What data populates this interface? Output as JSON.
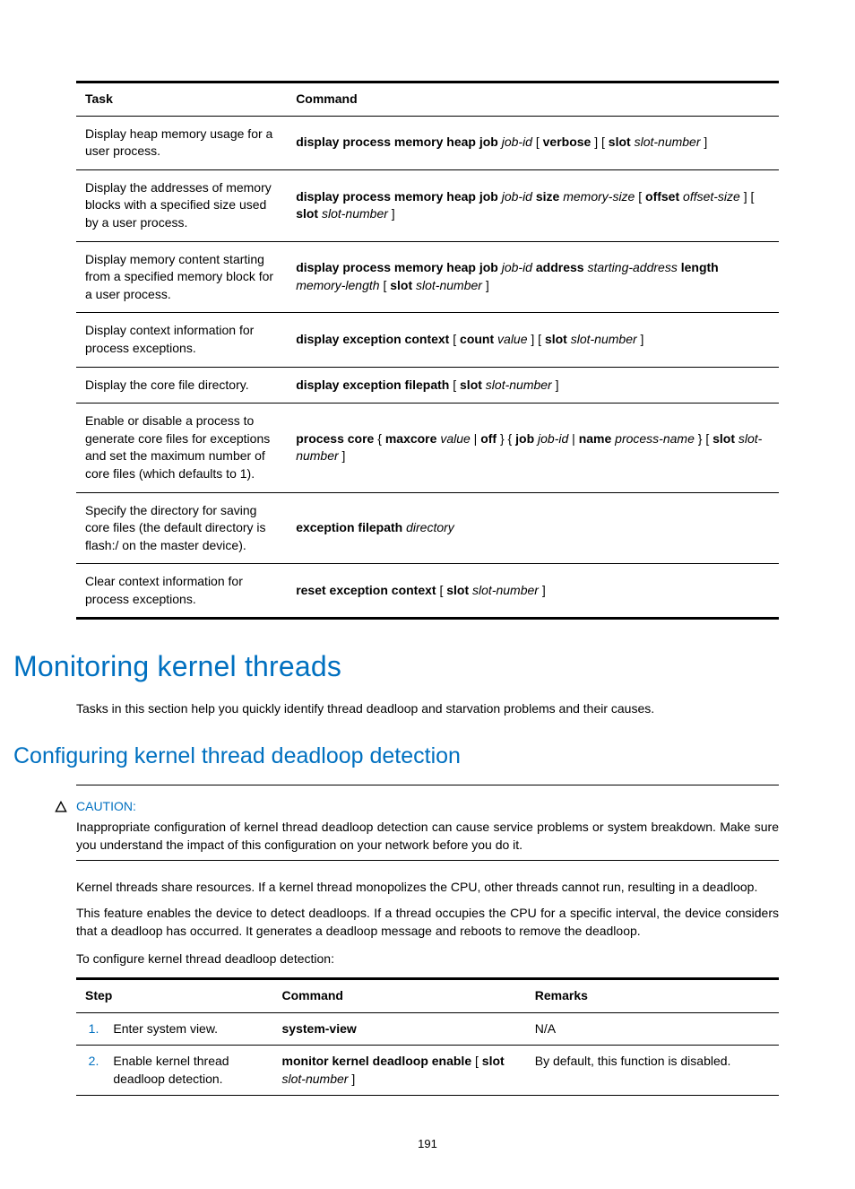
{
  "cmdTable": {
    "headers": {
      "task": "Task",
      "command": "Command"
    },
    "rows": [
      {
        "task": "Display heap memory usage for a user process.",
        "cmd": [
          {
            "t": "display process memory heap job ",
            "b": true
          },
          {
            "t": "job-id",
            "i": true
          },
          {
            "t": " [ "
          },
          {
            "t": "verbose",
            "b": true
          },
          {
            "t": " ] [ "
          },
          {
            "t": "slot",
            "b": true
          },
          {
            "t": " "
          },
          {
            "t": "slot-number",
            "i": true
          },
          {
            "t": " ]"
          }
        ]
      },
      {
        "task": "Display the addresses of memory blocks with a specified size used by a user process.",
        "cmd": [
          {
            "t": "display process memory heap job ",
            "b": true
          },
          {
            "t": "job-id",
            "i": true
          },
          {
            "t": " "
          },
          {
            "t": "size",
            "b": true
          },
          {
            "t": " "
          },
          {
            "t": "memory-size",
            "i": true
          },
          {
            "t": " [ "
          },
          {
            "t": "offset",
            "b": true
          },
          {
            "t": " "
          },
          {
            "t": "offset-size",
            "i": true
          },
          {
            "t": " ] [ "
          },
          {
            "t": "slot",
            "b": true
          },
          {
            "t": " "
          },
          {
            "t": "slot-number",
            "i": true
          },
          {
            "t": " ]"
          }
        ]
      },
      {
        "task": "Display memory content starting from a specified memory block for a user process.",
        "cmd": [
          {
            "t": "display process memory heap job ",
            "b": true
          },
          {
            "t": "job-id",
            "i": true
          },
          {
            "t": " "
          },
          {
            "t": "address",
            "b": true
          },
          {
            "t": " "
          },
          {
            "t": "starting-address",
            "i": true
          },
          {
            "t": " "
          },
          {
            "t": "length",
            "b": true
          },
          {
            "t": " "
          },
          {
            "t": "memory-length",
            "i": true
          },
          {
            "t": " [ "
          },
          {
            "t": "slot",
            "b": true
          },
          {
            "t": " "
          },
          {
            "t": "slot-number",
            "i": true
          },
          {
            "t": " ]"
          }
        ]
      },
      {
        "task": "Display context information for process exceptions.",
        "cmd": [
          {
            "t": "display exception context",
            "b": true
          },
          {
            "t": " [ "
          },
          {
            "t": "count",
            "b": true
          },
          {
            "t": " "
          },
          {
            "t": "value",
            "i": true
          },
          {
            "t": " ] [ "
          },
          {
            "t": "slot",
            "b": true
          },
          {
            "t": " "
          },
          {
            "t": "slot-number",
            "i": true
          },
          {
            "t": " ]"
          }
        ]
      },
      {
        "task": "Display the core file directory.",
        "cmd": [
          {
            "t": "display exception filepath",
            "b": true
          },
          {
            "t": " [ "
          },
          {
            "t": "slot",
            "b": true
          },
          {
            "t": " "
          },
          {
            "t": "slot-number",
            "i": true
          },
          {
            "t": " ]"
          }
        ]
      },
      {
        "task": "Enable or disable a process to generate core files for exceptions and set the maximum number of core files (which defaults to 1).",
        "cmd": [
          {
            "t": "process core",
            "b": true
          },
          {
            "t": " { "
          },
          {
            "t": "maxcore",
            "b": true
          },
          {
            "t": " "
          },
          {
            "t": "value",
            "i": true
          },
          {
            "t": " | "
          },
          {
            "t": "off",
            "b": true
          },
          {
            "t": " } { "
          },
          {
            "t": "job",
            "b": true
          },
          {
            "t": " "
          },
          {
            "t": "job-id",
            "i": true
          },
          {
            "t": " | "
          },
          {
            "t": "name",
            "b": true
          },
          {
            "t": " "
          },
          {
            "t": "process-name",
            "i": true
          },
          {
            "t": " } [ "
          },
          {
            "t": "slot",
            "b": true
          },
          {
            "t": " "
          },
          {
            "t": "slot-number",
            "i": true
          },
          {
            "t": " ]"
          }
        ]
      },
      {
        "task": "Specify the directory for saving core files (the default directory is flash:/ on the master device).",
        "cmd": [
          {
            "t": "exception filepath",
            "b": true
          },
          {
            "t": " "
          },
          {
            "t": "directory",
            "i": true
          }
        ]
      },
      {
        "task": "Clear context information for process exceptions.",
        "cmd": [
          {
            "t": "reset exception context",
            "b": true
          },
          {
            "t": " [ "
          },
          {
            "t": "slot",
            "b": true
          },
          {
            "t": " "
          },
          {
            "t": "slot-number",
            "i": true
          },
          {
            "t": " ]"
          }
        ]
      }
    ]
  },
  "heading1": "Monitoring kernel threads",
  "intro1": "Tasks in this section help you quickly identify thread deadloop and starvation problems and their causes.",
  "heading2": "Configuring kernel thread deadloop detection",
  "caution": {
    "label": "CAUTION:",
    "text": "Inappropriate configuration of kernel thread deadloop detection can cause service problems or system breakdown. Make sure you understand the impact of this configuration on your network before you do it."
  },
  "para1": "Kernel threads share resources. If a kernel thread monopolizes the CPU, other threads cannot run, resulting in a deadloop.",
  "para2": "This feature enables the device to detect deadloops. If a thread occupies the CPU for a specific interval, the device considers that a deadloop has occurred. It generates a deadloop message and reboots to remove the deadloop.",
  "para3": "To configure kernel thread deadloop detection:",
  "stepTable": {
    "headers": {
      "step": "Step",
      "command": "Command",
      "remarks": "Remarks"
    },
    "rows": [
      {
        "num": "1.",
        "desc": "Enter system view.",
        "cmd": [
          {
            "t": "system-view",
            "b": true
          }
        ],
        "remarks": "N/A"
      },
      {
        "num": "2.",
        "desc": "Enable kernel thread deadloop detection.",
        "cmd": [
          {
            "t": "monitor kernel deadloop enable",
            "b": true
          },
          {
            "t": " [ "
          },
          {
            "t": "slot",
            "b": true
          },
          {
            "t": " "
          },
          {
            "t": "slot-number",
            "i": true
          },
          {
            "t": " ]"
          }
        ],
        "remarks": "By default, this function is disabled."
      }
    ]
  },
  "pageNumber": "191",
  "colors": {
    "accent": "#0070c0",
    "text": "#000000",
    "background": "#ffffff"
  }
}
